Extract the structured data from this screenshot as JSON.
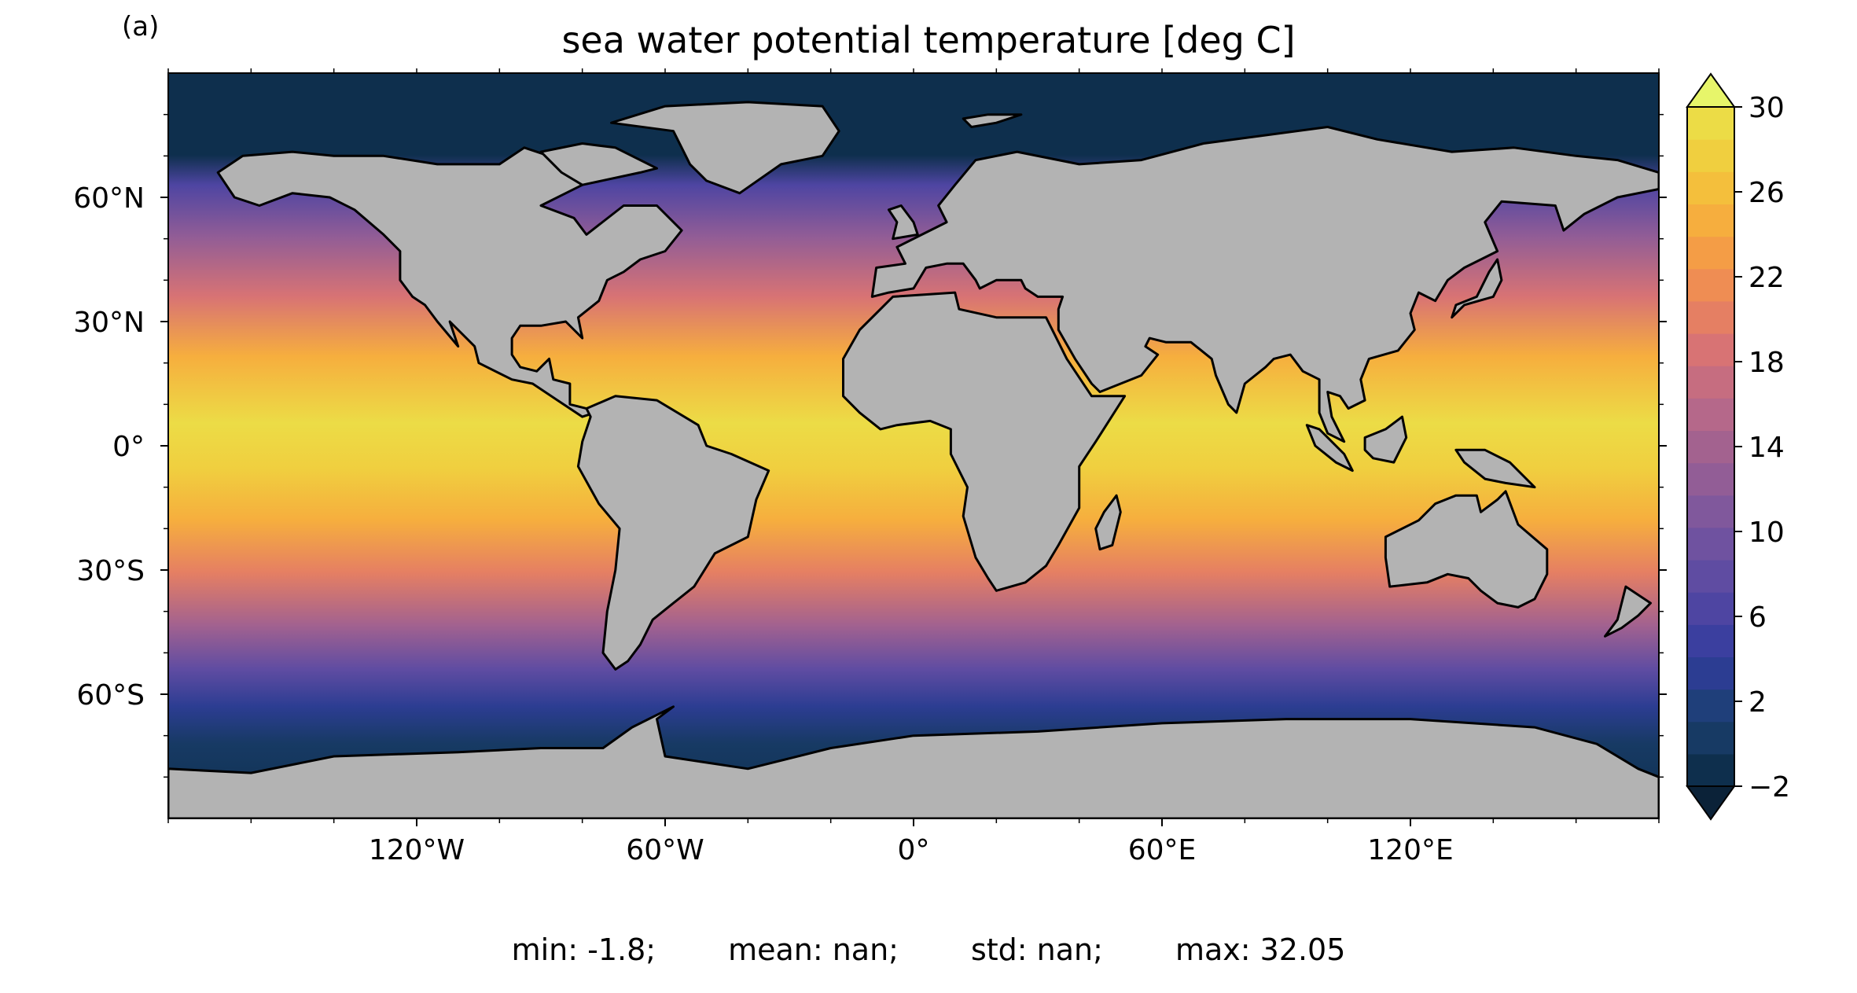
{
  "panel_label": "(a)",
  "title": "sea water potential temperature [deg C]",
  "map": {
    "projection": "PlateCarree",
    "extent": {
      "lon": [
        -180,
        180
      ],
      "lat": [
        -90,
        90
      ]
    },
    "land_color": "#b3b3b3",
    "coastline_color": "#000000",
    "x_ticks": [
      {
        "lon": -120,
        "label": "120°W"
      },
      {
        "lon": -60,
        "label": "60°W"
      },
      {
        "lon": 0,
        "label": "0°"
      },
      {
        "lon": 60,
        "label": "60°E"
      },
      {
        "lon": 120,
        "label": "120°E"
      }
    ],
    "y_ticks": [
      {
        "lat": 60,
        "label": "60°N"
      },
      {
        "lat": 30,
        "label": "30°N"
      },
      {
        "lat": 0,
        "label": "0°"
      },
      {
        "lat": -30,
        "label": "30°S"
      },
      {
        "lat": -60,
        "label": "60°S"
      }
    ]
  },
  "colorbar": {
    "min": -2,
    "max": 30,
    "step": 2,
    "extend": "both",
    "ticks": [
      {
        "value": 30,
        "label": "30"
      },
      {
        "value": 26,
        "label": "26"
      },
      {
        "value": 22,
        "label": "22"
      },
      {
        "value": 18,
        "label": "18"
      },
      {
        "value": 14,
        "label": "14"
      },
      {
        "value": 10,
        "label": "10"
      },
      {
        "value": 6,
        "label": "6"
      },
      {
        "value": 2,
        "label": "2"
      },
      {
        "value": -2,
        "label": "−2"
      }
    ],
    "colors": [
      "#0e2f4d",
      "#173a64",
      "#1f3f7a",
      "#2c3d92",
      "#3b3f9f",
      "#4e45a2",
      "#5f4ca2",
      "#6f52a0",
      "#80589c",
      "#925d96",
      "#a3628f",
      "#b5688a",
      "#c66d80",
      "#d87374",
      "#e57f63",
      "#ef8d53",
      "#f49d46",
      "#f6ae3e",
      "#f4bf3c",
      "#f0cf3f",
      "#ecdc46"
    ],
    "extend_max_color": "#e7f56a",
    "extend_min_color": "#0b2238"
  },
  "stats": {
    "min": "min: -1.8;",
    "mean": "mean: nan;",
    "std": "std: nan;",
    "max": "max: 32.05"
  }
}
